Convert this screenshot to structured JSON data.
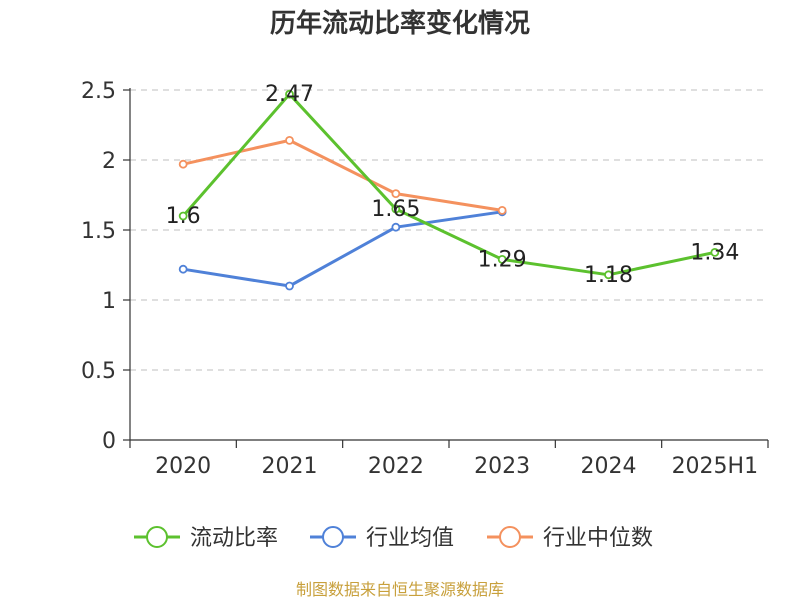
{
  "chart_data": {
    "type": "line",
    "title": "历年流动比率变化情况",
    "categories": [
      "2020",
      "2021",
      "2022",
      "2023",
      "2024",
      "2025H1"
    ],
    "ylim": [
      0,
      2.5
    ],
    "yticks": [
      "0",
      "0.5",
      "1",
      "1.5",
      "2",
      "2.5"
    ],
    "grid": true,
    "legend_position": "bottom",
    "series": [
      {
        "name": "流动比率",
        "color": "#5cc12e",
        "values": [
          1.6,
          2.47,
          1.65,
          1.29,
          1.18,
          1.34
        ],
        "labels": [
          "1.6",
          "2.47",
          "1.65",
          "1.29",
          "1.18",
          "1.34"
        ]
      },
      {
        "name": "行业均值",
        "color": "#4f81d8",
        "values": [
          1.22,
          1.1,
          1.52,
          1.63,
          null,
          null
        ]
      },
      {
        "name": "行业中位数",
        "color": "#f4915e",
        "values": [
          1.97,
          2.14,
          1.76,
          1.64,
          null,
          null
        ]
      }
    ]
  },
  "source": "制图数据来自恒生聚源数据库"
}
